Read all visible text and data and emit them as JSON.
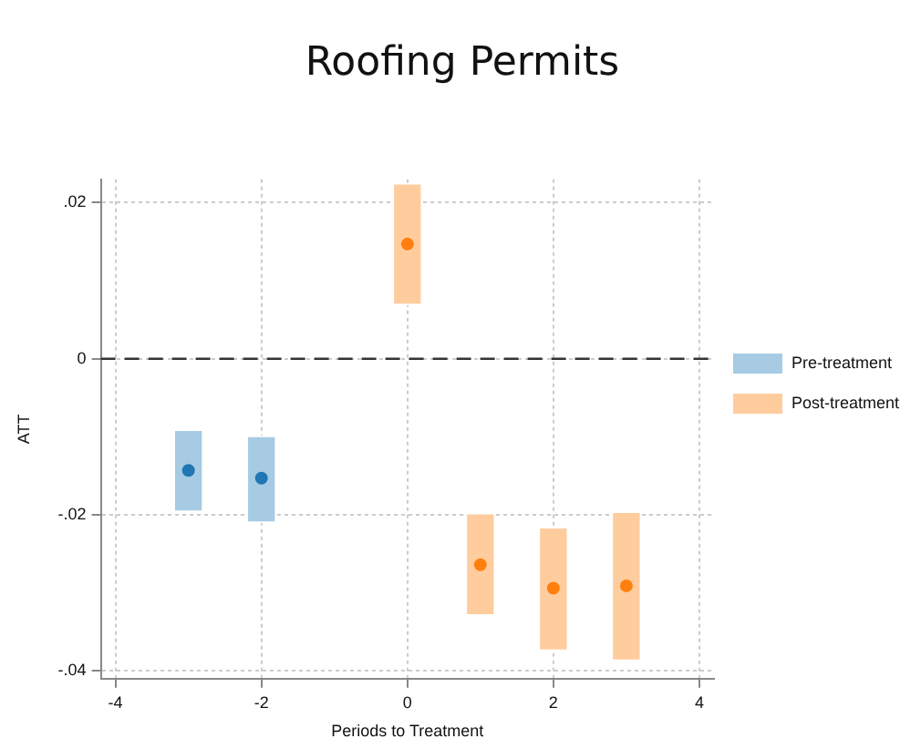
{
  "chart_data": {
    "type": "scatter",
    "title": "Roofing Permits",
    "xlabel": "Periods to Treatment",
    "ylabel": "ATT",
    "xlim": [
      -4.2,
      4.2
    ],
    "xticks": [
      -4,
      -2,
      0,
      2,
      4
    ],
    "ylim": [
      -0.041,
      0.023
    ],
    "yticks": [
      {
        "value": 0.02,
        "label": ".02"
      },
      {
        "value": 0,
        "label": "0"
      },
      {
        "value": -0.02,
        "label": "-.02"
      },
      {
        "value": -0.04,
        "label": "-.04"
      }
    ],
    "grid": true,
    "legend": "right",
    "marker": "circle",
    "ref_lines": [
      {
        "axis": "y",
        "value": 0,
        "line_style": "dashed",
        "color": "#333333"
      }
    ],
    "series": [
      {
        "type": "bar",
        "name": "Pre-treatment",
        "color": "#a6cbe3",
        "x": [
          -3,
          -2
        ],
        "base": [
          -0.0196,
          -0.021
        ],
        "values": [
          0.0105,
          0.0111
        ]
      },
      {
        "type": "bar",
        "name": "Post-treatment",
        "color": "#ffcc9e",
        "x": [
          0,
          1,
          2,
          3
        ],
        "base": [
          0.0069,
          -0.0329,
          -0.0374,
          -0.0387
        ],
        "values": [
          0.0156,
          0.0131,
          0.0158,
          0.0191
        ]
      },
      {
        "color": "#1f77b4",
        "x": [
          -3,
          -2
        ],
        "values": [
          -0.0143,
          -0.0153
        ]
      },
      {
        "color": "#ff7f0e",
        "x": [
          0,
          1,
          2,
          3
        ],
        "values": [
          0.0147,
          -0.0264,
          -0.0294,
          -0.0291
        ]
      }
    ]
  }
}
